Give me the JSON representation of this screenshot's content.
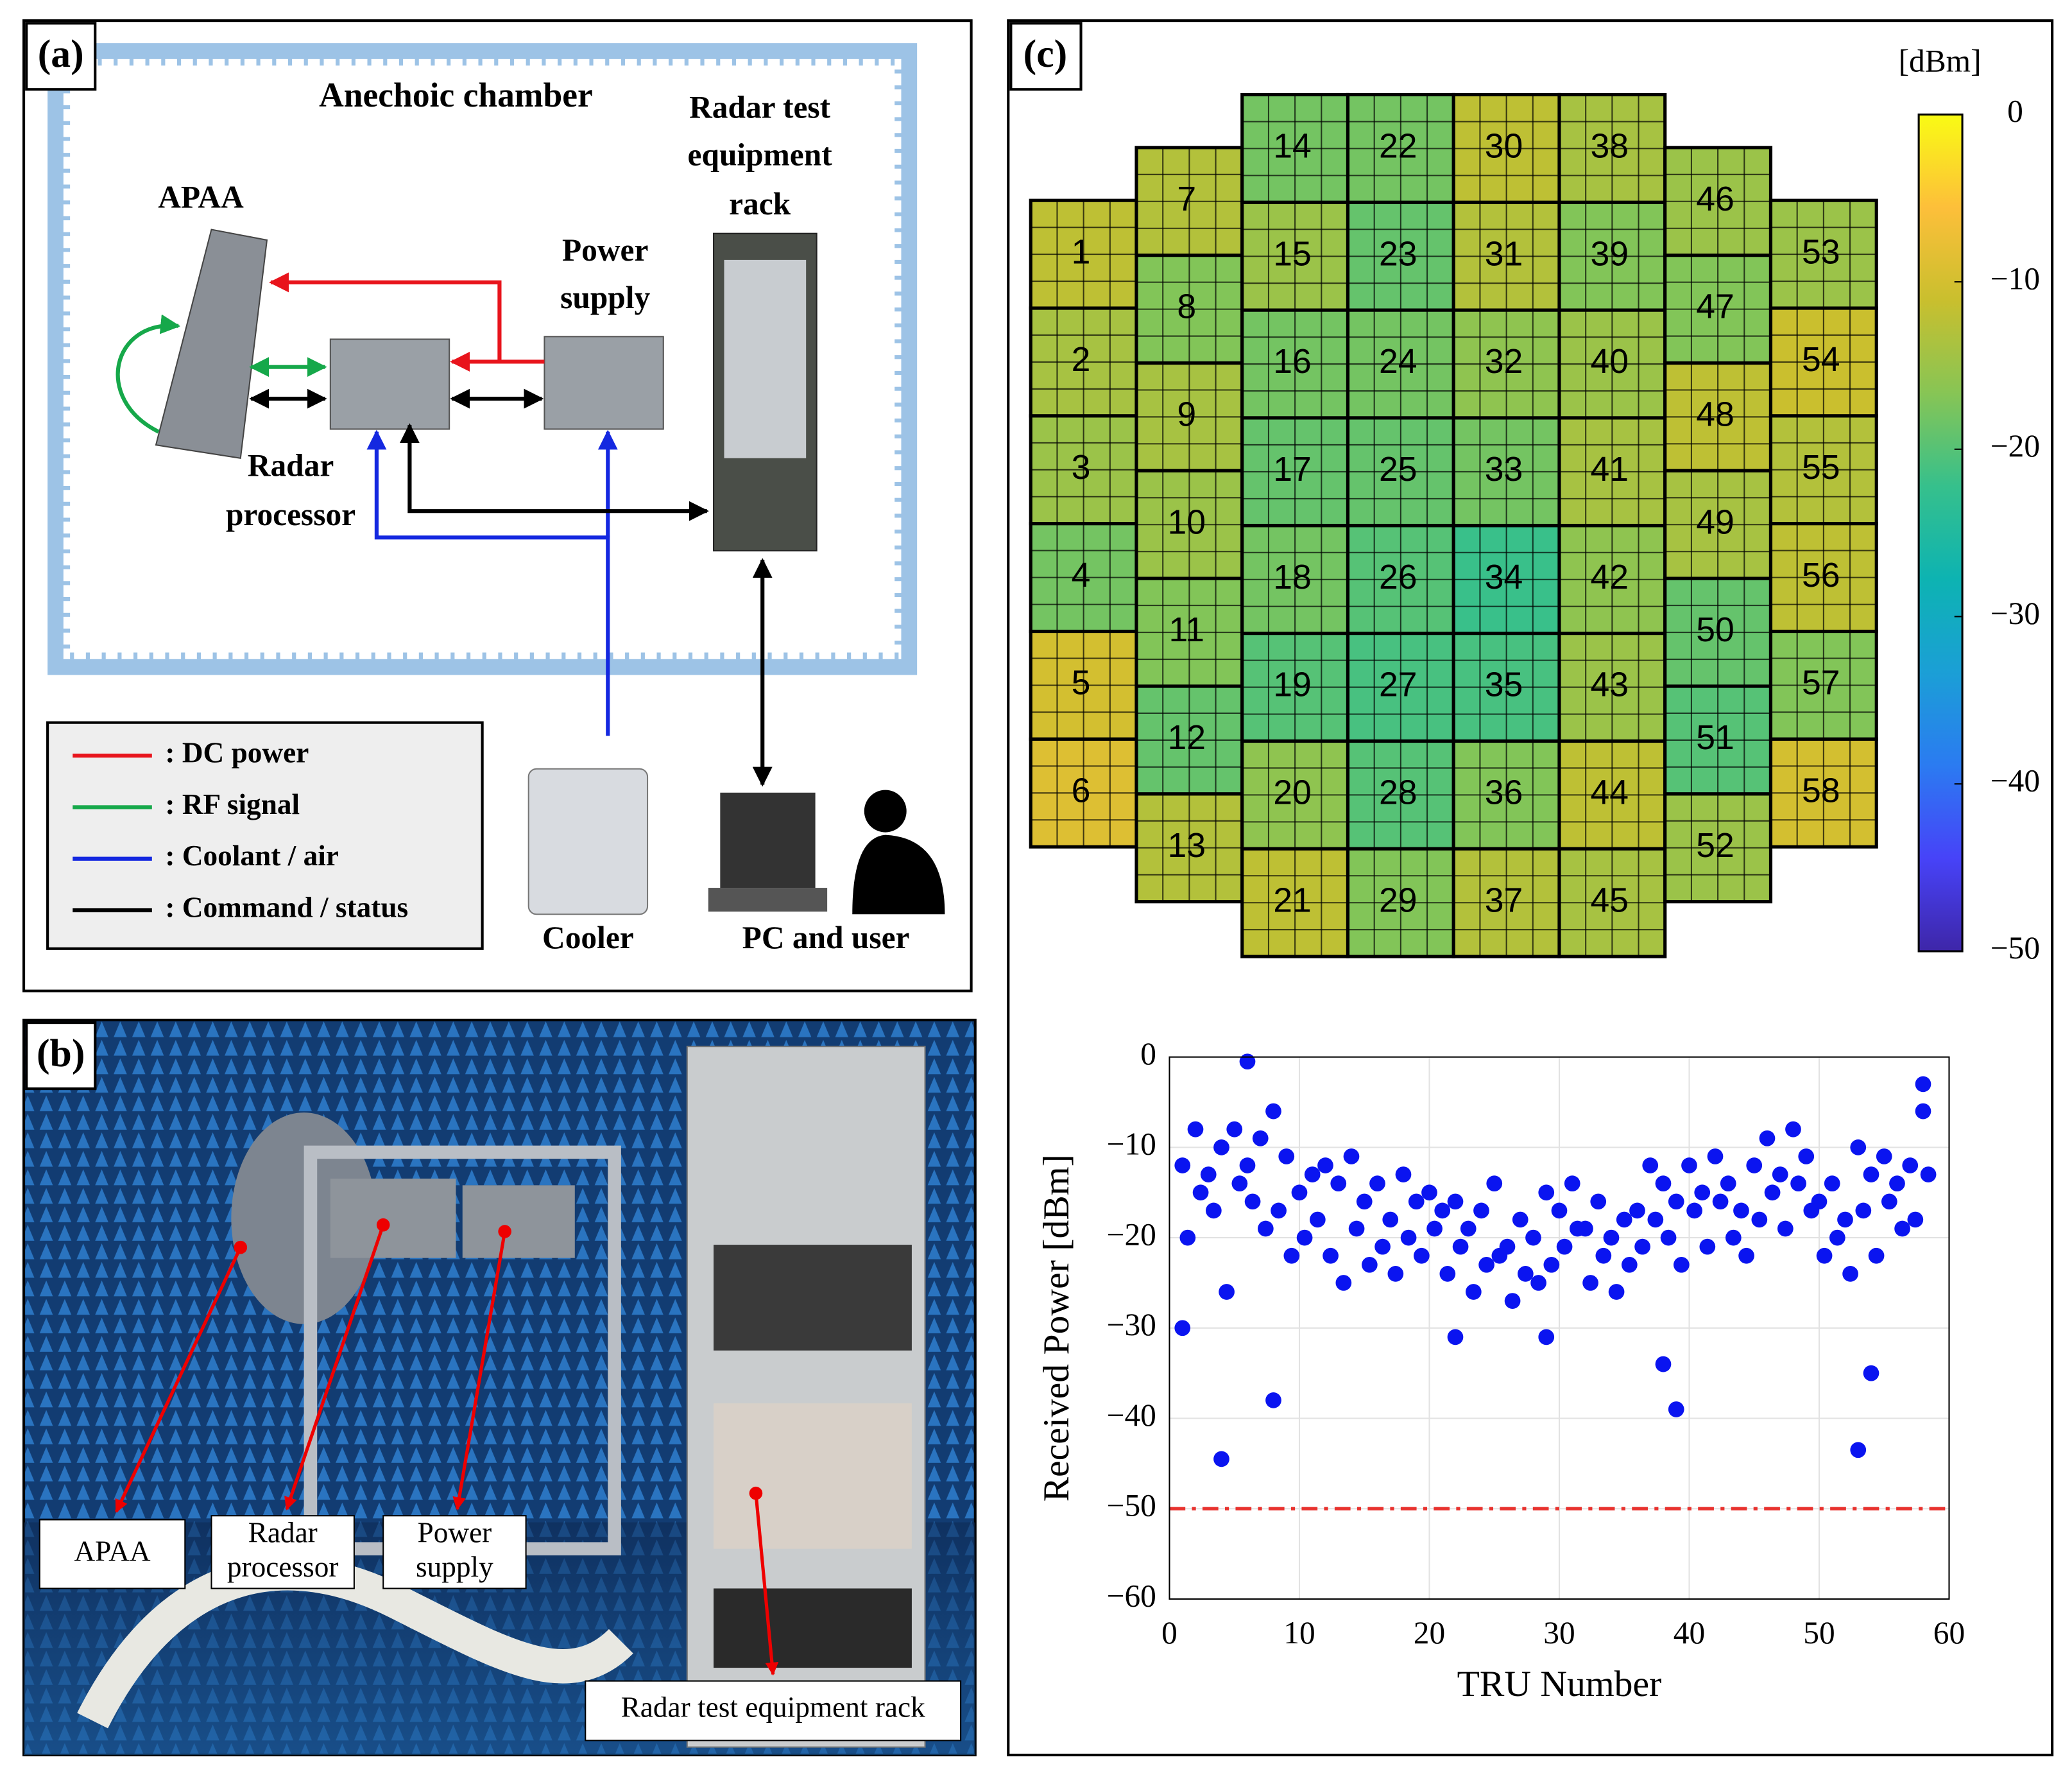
{
  "panel_a": {
    "label": "(a)",
    "chamber": "Anechoic chamber",
    "rack": [
      "Radar test",
      "equipment",
      "rack"
    ],
    "apaa": "APAA",
    "power_supply": [
      "Power",
      "supply"
    ],
    "radar_processor": [
      "Radar",
      "processor"
    ],
    "legend": [
      ": DC power",
      ": RF signal",
      ": Coolant / air",
      ": Command / status"
    ],
    "cooler": "Cooler",
    "pc_user": "PC and user"
  },
  "panel_b": {
    "label": "(b)",
    "apaa": "APAA",
    "radar_processor": [
      "Radar",
      "processor"
    ],
    "power_supply": [
      "Power",
      "supply"
    ],
    "rack": "Radar test equipment rack"
  },
  "panel_c": {
    "label": "(c)",
    "heatmap": {
      "type": "heatmap",
      "labels": [
        1,
        2,
        3,
        4,
        5,
        6,
        7,
        8,
        9,
        10,
        11,
        12,
        13,
        14,
        15,
        16,
        17,
        18,
        19,
        20,
        21,
        22,
        23,
        24,
        25,
        26,
        27,
        28,
        29,
        30,
        31,
        32,
        33,
        34,
        35,
        36,
        37,
        38,
        39,
        40,
        41,
        42,
        43,
        44,
        45,
        46,
        47,
        48,
        49,
        50,
        51,
        52,
        53,
        54,
        55,
        56,
        57,
        58
      ],
      "values": [
        -12,
        -14,
        -15,
        -18,
        -10,
        -9,
        -13,
        -17,
        -14,
        -15,
        -17,
        -19,
        -13,
        -18,
        -15,
        -18,
        -19,
        -18,
        -20,
        -16,
        -12,
        -18,
        -19,
        -18,
        -19,
        -20,
        -21,
        -20,
        -17,
        -12,
        -13,
        -16,
        -18,
        -22,
        -21,
        -17,
        -13,
        -14,
        -17,
        -15,
        -14,
        -16,
        -15,
        -12,
        -14,
        -15,
        -17,
        -12,
        -14,
        -19,
        -20,
        -15,
        -15,
        -11,
        -13,
        -12,
        -17,
        -10
      ],
      "colorbar_label": "[dBm]",
      "clim": [
        -50,
        0
      ],
      "cticks": [
        0,
        {
          "value": -10,
          "label": "−10"
        },
        {
          "value": -20,
          "label": "−20"
        },
        {
          "value": -30,
          "label": "−30"
        },
        {
          "value": -40,
          "label": "−40"
        },
        {
          "value": -50,
          "label": "−50"
        }
      ],
      "colormap": [
        "#3e26a8",
        "#4743f8",
        "#2b7bf1",
        "#1b9fd6",
        "#0db3b2",
        "#36c08c",
        "#87c555",
        "#c9bf2e",
        "#fdbf3a",
        "#f9fb14"
      ]
    }
  },
  "chart_data": {
    "type": "scatter",
    "xlabel": "TRU Number",
    "ylabel": "Received Power [dBm]",
    "color": "#0a14f0",
    "grid": true,
    "xlim": [
      0,
      60
    ],
    "xticks": [
      0,
      10,
      20,
      30,
      40,
      50,
      60
    ],
    "ylim": [
      -60,
      0
    ],
    "yticks": [
      0,
      {
        "value": -10,
        "label": "−10"
      },
      {
        "value": -20,
        "label": "−20"
      },
      {
        "value": -30,
        "label": "−30"
      },
      {
        "value": -40,
        "label": "−40"
      },
      {
        "value": -50,
        "label": "−50"
      },
      {
        "value": -60,
        "label": "−60"
      }
    ],
    "reference_line": {
      "value": -50,
      "color": "#e8322e"
    },
    "x": [
      1,
      1.4,
      2,
      2.4,
      3,
      3.4,
      4,
      4.4,
      5,
      5.4,
      6,
      6.4,
      7,
      7.4,
      8,
      8.4,
      9,
      9.4,
      10,
      10.4,
      11,
      11.4,
      12,
      12.4,
      13,
      13.4,
      14,
      14.4,
      15,
      15.4,
      16,
      16.4,
      17,
      17.4,
      18,
      18.4,
      19,
      19.4,
      20,
      20.4,
      21,
      21.4,
      22,
      22.4,
      23,
      23.4,
      24,
      24.4,
      25,
      25.4,
      26,
      26.4,
      27,
      27.4,
      28,
      28.4,
      29,
      29.4,
      30,
      30.4,
      31,
      31.4,
      32,
      32.4,
      33,
      33.4,
      34,
      34.4,
      35,
      35.4,
      36,
      36.4,
      37,
      37.4,
      38,
      38.4,
      39,
      39.4,
      40,
      40.4,
      41,
      41.4,
      42,
      42.4,
      43,
      43.4,
      44,
      44.4,
      45,
      45.4,
      46,
      46.4,
      47,
      47.4,
      48,
      48.4,
      49,
      49.4,
      50,
      50.4,
      51,
      51.4,
      52,
      52.4,
      53,
      53.4,
      54,
      54.4,
      55,
      55.4,
      56,
      56.4,
      57,
      57.4,
      58,
      58.4,
      1,
      4,
      6,
      8,
      22,
      29,
      38,
      39,
      53,
      54,
      58
    ],
    "values": [
      -12,
      -20,
      -8,
      -15,
      -13,
      -17,
      -10,
      -26,
      -8,
      -14,
      -12,
      -16,
      -9,
      -19,
      -6,
      -17,
      -11,
      -22,
      -15,
      -20,
      -13,
      -18,
      -12,
      -22,
      -14,
      -25,
      -11,
      -19,
      -16,
      -23,
      -14,
      -21,
      -18,
      -24,
      -13,
      -20,
      -16,
      -22,
      -15,
      -19,
      -17,
      -24,
      -16,
      -21,
      -19,
      -26,
      -17,
      -23,
      -14,
      -22,
      -21,
      -27,
      -18,
      -24,
      -20,
      -25,
      -15,
      -23,
      -17,
      -21,
      -14,
      -19,
      -19,
      -25,
      -16,
      -22,
      -20,
      -26,
      -18,
      -23,
      -17,
      -21,
      -12,
      -18,
      -14,
      -20,
      -16,
      -23,
      -12,
      -17,
      -15,
      -21,
      -11,
      -16,
      -14,
      -20,
      -17,
      -22,
      -12,
      -18,
      -9,
      -15,
      -13,
      -19,
      -8,
      -14,
      -11,
      -17,
      -16,
      -22,
      -14,
      -20,
      -18,
      -24,
      -10,
      -17,
      -13,
      -22,
      -11,
      -16,
      -14,
      -19,
      -12,
      -18,
      -6,
      -13,
      -30,
      -44.5,
      -0.5,
      -38,
      -31,
      -31,
      -34,
      -39,
      -43.5,
      -35,
      -3
    ]
  }
}
